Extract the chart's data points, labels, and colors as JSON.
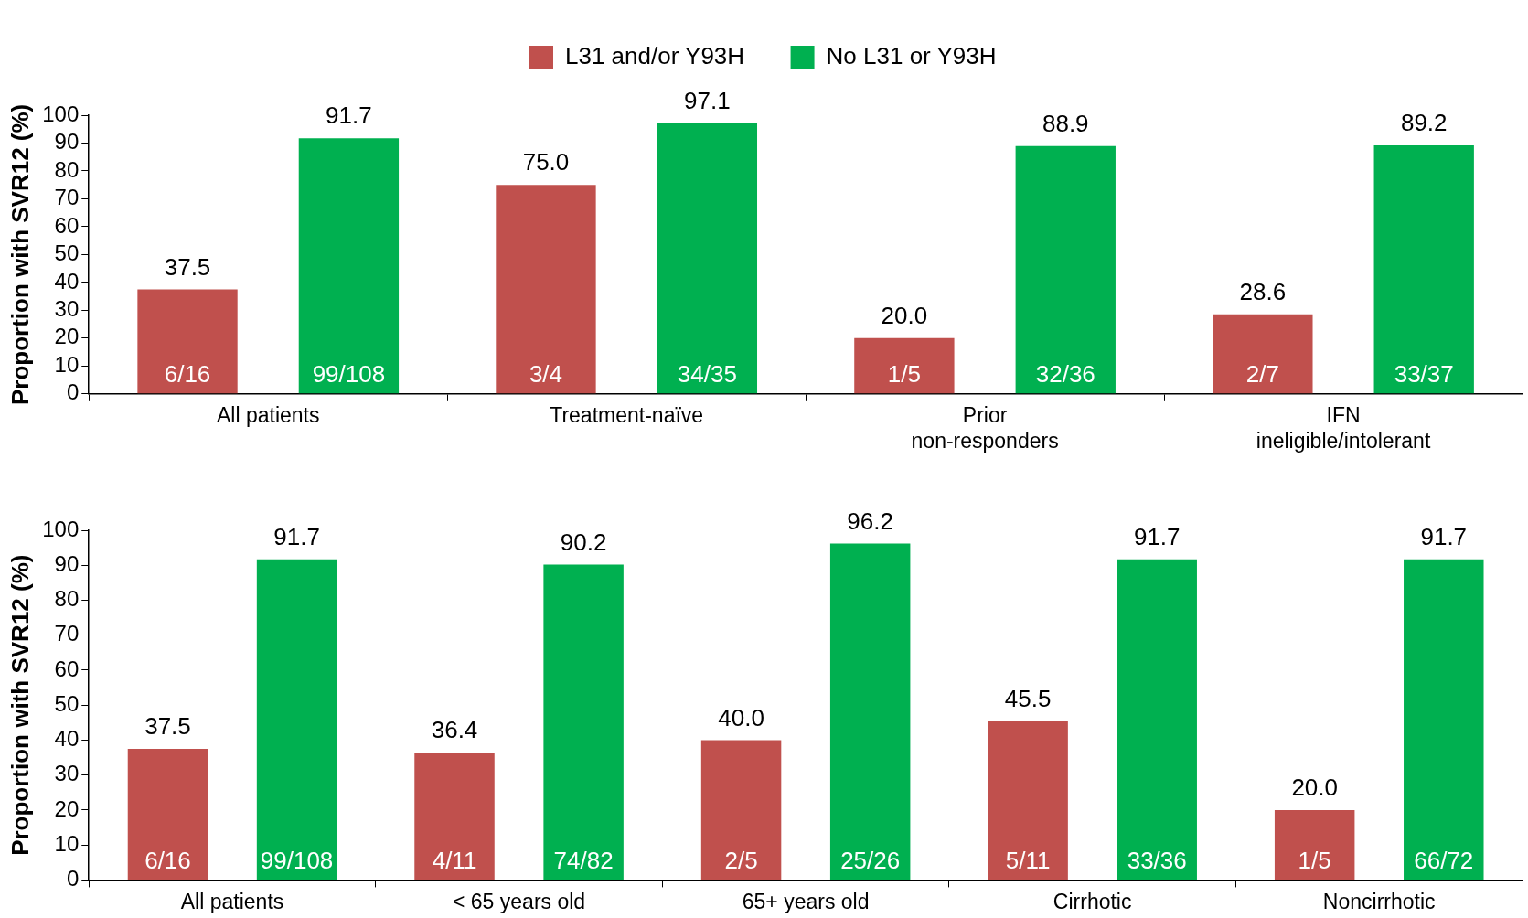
{
  "chart_data": [
    {
      "type": "bar",
      "ylabel": "Proportion with SVR12 (%)",
      "categories": [
        "All patients",
        "Treatment-naïve",
        "Prior non-responders",
        "IFN ineligible/intolerant"
      ],
      "series": [
        {
          "name": "L31 and/or Y93H",
          "color": "#c0504d",
          "values": [
            37.5,
            75,
            20,
            28.6
          ],
          "value_labels": [
            "37.5",
            "75.0",
            "20.0",
            "28.6"
          ]
        },
        {
          "name": "No L31 or Y93H",
          "color": "#00b050",
          "values": [
            91.7,
            97.1,
            88.9,
            89.2
          ],
          "value_labels": [
            "91.7",
            "97.1",
            "88.9",
            "89.2"
          ]
        }
      ],
      "ylim": [
        0,
        100
      ],
      "yticks": [
        0,
        10,
        20,
        30,
        40,
        50,
        60,
        70,
        80,
        90,
        100
      ],
      "grid": false,
      "legend": "top",
      "annotations": [
        "6/16",
        "99/108",
        "3/4",
        "34/35",
        "1/5",
        "32/36",
        "2/7",
        "33/37"
      ]
    },
    {
      "type": "bar",
      "ylabel": "Proportion with SVR12 (%)",
      "categories": [
        "All patients",
        "< 65 years old",
        "65+ years old",
        "Cirrhotic",
        "Noncirrhotic"
      ],
      "series": [
        {
          "color": "#c0504d",
          "values": [
            37.5,
            36.4,
            40,
            45.5,
            20
          ],
          "value_labels": [
            "37.5",
            "36.4",
            "40.0",
            "45.5",
            "20.0"
          ]
        },
        {
          "color": "#00b050",
          "values": [
            91.7,
            90.2,
            96.2,
            91.7,
            91.7
          ],
          "value_labels": [
            "91.7",
            "90.2",
            "96.2",
            "91.7",
            "91.7"
          ]
        }
      ],
      "ylim": [
        0,
        100
      ],
      "yticks": [
        0,
        10,
        20,
        30,
        40,
        50,
        60,
        70,
        80,
        90,
        100
      ],
      "grid": false,
      "annotations": [
        "6/16",
        "99/108",
        "4/11",
        "74/82",
        "2/5",
        "25/26",
        "5/11",
        "33/36",
        "1/5",
        "66/72"
      ]
    }
  ]
}
